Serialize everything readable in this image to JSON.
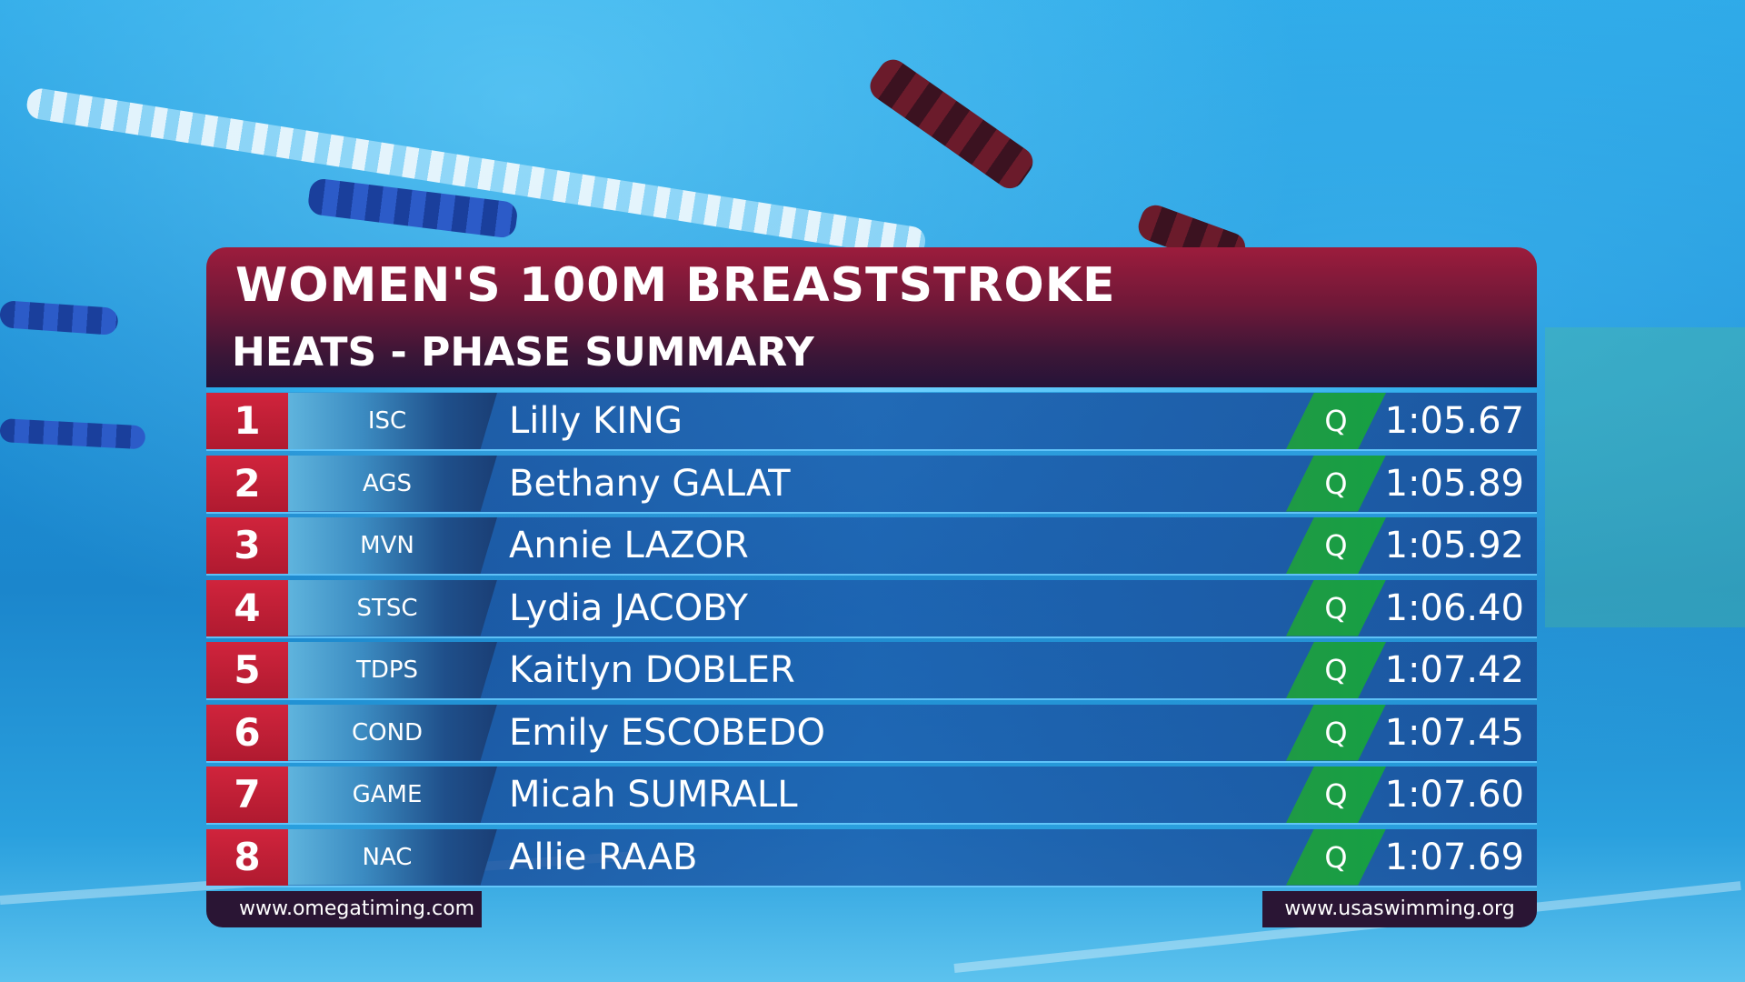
{
  "event": {
    "title": "WOMEN'S 100M BREASTSTROKE",
    "subtitle": "HEATS - PHASE SUMMARY"
  },
  "results": [
    {
      "rank": "1",
      "club": "ISC",
      "name": "Lilly KING",
      "qualifier": "Q",
      "time": "1:05.67"
    },
    {
      "rank": "2",
      "club": "AGS",
      "name": "Bethany GALAT",
      "qualifier": "Q",
      "time": "1:05.89"
    },
    {
      "rank": "3",
      "club": "MVN",
      "name": "Annie LAZOR",
      "qualifier": "Q",
      "time": "1:05.92"
    },
    {
      "rank": "4",
      "club": "STSC",
      "name": "Lydia JACOBY",
      "qualifier": "Q",
      "time": "1:06.40"
    },
    {
      "rank": "5",
      "club": "TDPS",
      "name": "Kaitlyn DOBLER",
      "qualifier": "Q",
      "time": "1:07.42"
    },
    {
      "rank": "6",
      "club": "COND",
      "name": "Emily ESCOBEDO",
      "qualifier": "Q",
      "time": "1:07.45"
    },
    {
      "rank": "7",
      "club": "GAME",
      "name": "Micah SUMRALL",
      "qualifier": "Q",
      "time": "1:07.60"
    },
    {
      "rank": "8",
      "club": "NAC",
      "name": "Allie RAAB",
      "qualifier": "Q",
      "time": "1:07.69"
    }
  ],
  "footer": {
    "left_url": "www.omegatiming.com",
    "right_url": "www.usaswimming.org"
  },
  "colors": {
    "header_accent": "#9c1c3c",
    "rank_red": "#d0243c",
    "qualifier_green": "#1f9a45",
    "row_blue": "#1c5aaa"
  }
}
